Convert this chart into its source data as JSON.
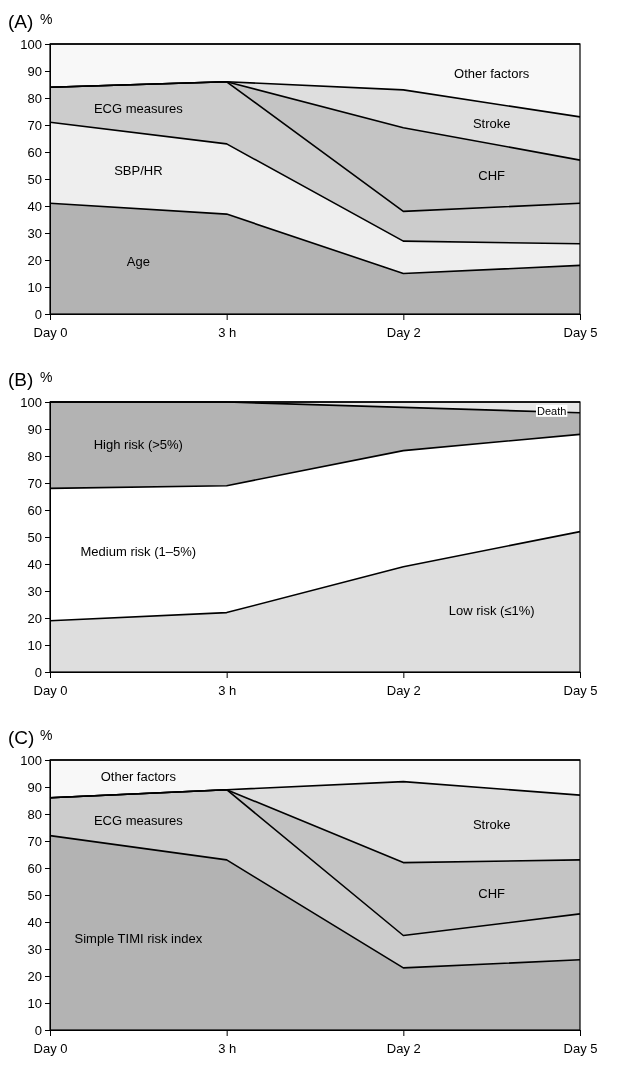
{
  "chart_data": [
    {
      "type": "area",
      "title": "(A)",
      "ylabel": "%",
      "stacked": true,
      "categories": [
        "Day 0",
        "3 h",
        "Day 2",
        "Day 5"
      ],
      "ylim": [
        0,
        100
      ],
      "yticks": [
        0,
        10,
        20,
        30,
        40,
        50,
        60,
        70,
        80,
        90,
        100
      ],
      "legend": false,
      "series": [
        {
          "name": "Age",
          "color": "#b3b3b3",
          "values": [
            41,
            37,
            15,
            18
          ]
        },
        {
          "name": "SBP/HR",
          "color": "#eeeeee",
          "values": [
            30,
            26,
            12,
            8
          ]
        },
        {
          "name": "ECG measures",
          "color": "#cccccc",
          "values": [
            13,
            23,
            11,
            15
          ]
        },
        {
          "name": "CHF",
          "color": "#c4c4c4",
          "values": [
            0,
            0,
            31,
            16
          ]
        },
        {
          "name": "Stroke",
          "color": "#dedede",
          "values": [
            0,
            0,
            14,
            16
          ]
        },
        {
          "name": "Other factors",
          "color": "#f8f8f8",
          "values": [
            16,
            14,
            17,
            27
          ]
        }
      ]
    },
    {
      "type": "area",
      "title": "(B)",
      "ylabel": "%",
      "stacked": true,
      "categories": [
        "Day 0",
        "3 h",
        "Day 2",
        "Day 5"
      ],
      "ylim": [
        0,
        100
      ],
      "yticks": [
        0,
        10,
        20,
        30,
        40,
        50,
        60,
        70,
        80,
        90,
        100
      ],
      "legend": false,
      "series": [
        {
          "name": "Low risk (≤1%)",
          "color": "#dedede",
          "values": [
            19,
            22,
            39,
            52
          ]
        },
        {
          "name": "Medium risk (1–5%)",
          "color": "#ffffff",
          "values": [
            49,
            47,
            43,
            36
          ]
        },
        {
          "name": "High risk (>5%)",
          "color": "#b3b3b3",
          "values": [
            32,
            31,
            16,
            8
          ]
        },
        {
          "name": "Death",
          "color": "#e6e6e6",
          "values": [
            0,
            0,
            2,
            4
          ]
        }
      ]
    },
    {
      "type": "area",
      "title": "(C)",
      "ylabel": "%",
      "stacked": true,
      "categories": [
        "Day 0",
        "3 h",
        "Day 2",
        "Day 5"
      ],
      "ylim": [
        0,
        100
      ],
      "yticks": [
        0,
        10,
        20,
        30,
        40,
        50,
        60,
        70,
        80,
        90,
        100
      ],
      "legend": false,
      "series": [
        {
          "name": "Simple TIMI risk index",
          "color": "#b3b3b3",
          "values": [
            72,
            63,
            23,
            26
          ]
        },
        {
          "name": "ECG measures",
          "color": "#cccccc",
          "values": [
            14,
            26,
            12,
            17
          ]
        },
        {
          "name": "CHF",
          "color": "#c4c4c4",
          "values": [
            0,
            0,
            27,
            20
          ]
        },
        {
          "name": "Stroke",
          "color": "#dedede",
          "values": [
            0,
            0,
            30,
            24
          ]
        },
        {
          "name": "Other factors",
          "color": "#f8f8f8",
          "values": [
            14,
            11,
            8,
            13
          ]
        }
      ]
    }
  ]
}
